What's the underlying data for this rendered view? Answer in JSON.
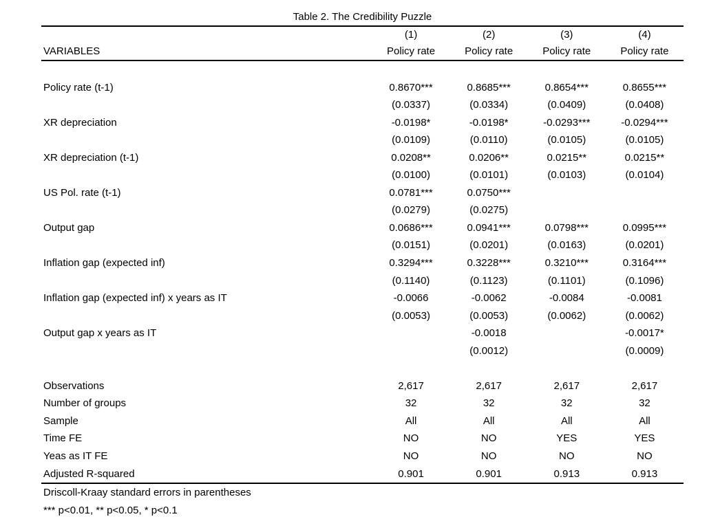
{
  "table": {
    "title": "Table 2. The Credibility Puzzle",
    "variables_header": "VARIABLES",
    "col_numbers": [
      "(1)",
      "(2)",
      "(3)",
      "(4)"
    ],
    "dep_vars": [
      "Policy rate",
      "Policy rate",
      "Policy rate",
      "Policy rate"
    ],
    "coef_rows": [
      {
        "label": "Policy rate (t-1)",
        "coefs": [
          "0.8670***",
          "0.8685***",
          "0.8654***",
          "0.8655***"
        ],
        "ses": [
          "(0.0337)",
          "(0.0334)",
          "(0.0409)",
          "(0.0408)"
        ]
      },
      {
        "label": "XR depreciation",
        "coefs": [
          "-0.0198*",
          "-0.0198*",
          "-0.0293***",
          "-0.0294***"
        ],
        "ses": [
          "(0.0109)",
          "(0.0110)",
          "(0.0105)",
          "(0.0105)"
        ]
      },
      {
        "label": "XR depreciation (t-1)",
        "coefs": [
          "0.0208**",
          "0.0206**",
          "0.0215**",
          "0.0215**"
        ],
        "ses": [
          "(0.0100)",
          "(0.0101)",
          "(0.0103)",
          "(0.0104)"
        ]
      },
      {
        "label": "US Pol. rate (t-1)",
        "coefs": [
          "0.0781***",
          "0.0750***",
          "",
          ""
        ],
        "ses": [
          "(0.0279)",
          "(0.0275)",
          "",
          ""
        ]
      },
      {
        "label": "Output gap",
        "coefs": [
          "0.0686***",
          "0.0941***",
          "0.0798***",
          "0.0995***"
        ],
        "ses": [
          "(0.0151)",
          "(0.0201)",
          "(0.0163)",
          "(0.0201)"
        ]
      },
      {
        "label": "Inflation gap (expected inf)",
        "coefs": [
          "0.3294***",
          "0.3228***",
          "0.3210***",
          "0.3164***"
        ],
        "ses": [
          "(0.1140)",
          "(0.1123)",
          "(0.1101)",
          "(0.1096)"
        ]
      },
      {
        "label": "Inflation gap (expected inf) x years as IT",
        "coefs": [
          "-0.0066",
          "-0.0062",
          "-0.0084",
          "-0.0081"
        ],
        "ses": [
          "(0.0053)",
          "(0.0053)",
          "(0.0062)",
          "(0.0062)"
        ]
      },
      {
        "label": "Output gap x years as IT",
        "coefs": [
          "",
          "-0.0018",
          "",
          "-0.0017*"
        ],
        "ses": [
          "",
          "(0.0012)",
          "",
          "(0.0009)"
        ]
      }
    ],
    "stat_rows": [
      {
        "label": "Observations",
        "values": [
          "2,617",
          "2,617",
          "2,617",
          "2,617"
        ]
      },
      {
        "label": "Number of groups",
        "values": [
          "32",
          "32",
          "32",
          "32"
        ]
      },
      {
        "label": "Sample",
        "values": [
          "All",
          "All",
          "All",
          "All"
        ]
      },
      {
        "label": "Time FE",
        "values": [
          "NO",
          "NO",
          "YES",
          "YES"
        ]
      },
      {
        "label": "Yeas as IT FE",
        "values": [
          "NO",
          "NO",
          "NO",
          "NO"
        ]
      },
      {
        "label": "Adjusted R-squared",
        "values": [
          "0.901",
          "0.901",
          "0.913",
          "0.913"
        ]
      }
    ],
    "notes": [
      "Driscoll-Kraay standard errors in parentheses",
      "*** p<0.01, ** p<0.05, * p<0.1"
    ]
  }
}
